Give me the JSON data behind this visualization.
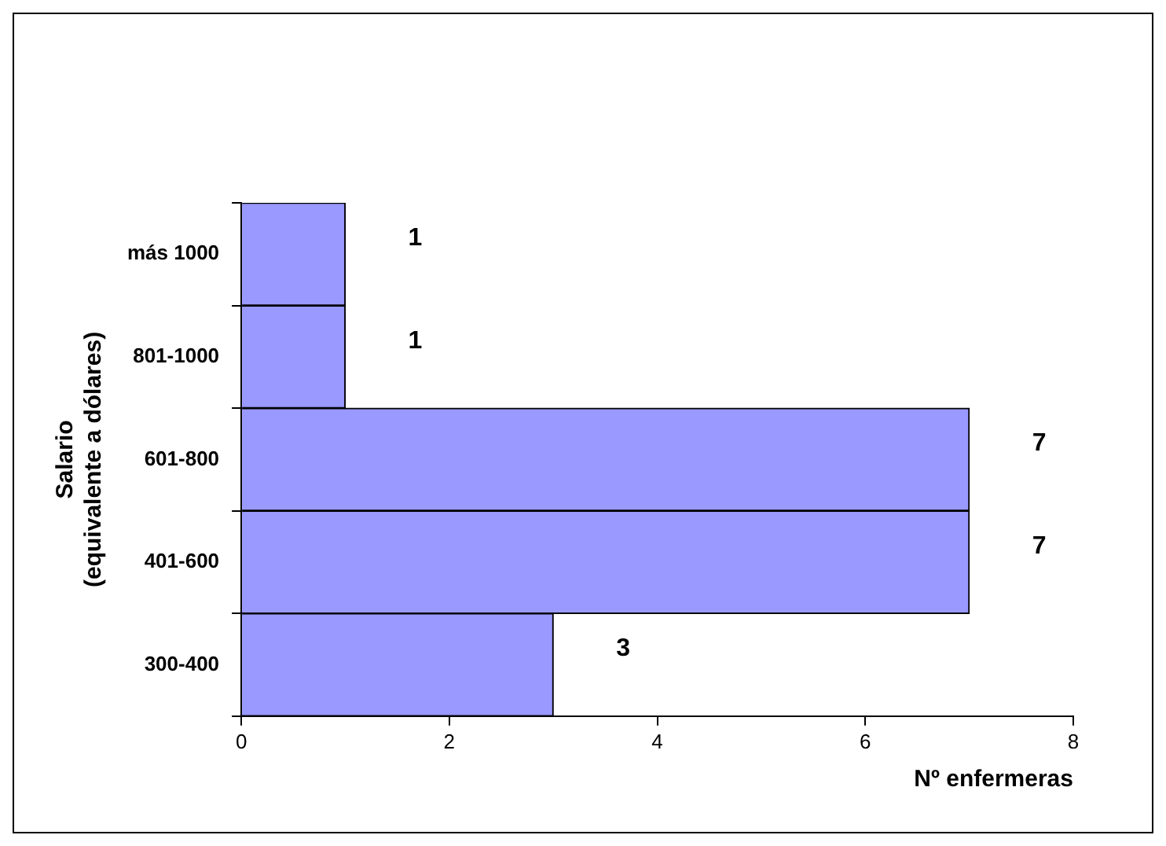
{
  "chart_data": {
    "type": "bar",
    "orientation": "horizontal",
    "categories": [
      "más 1000",
      "801-1000",
      "601-800",
      "401-600",
      "300-400"
    ],
    "values": [
      1,
      1,
      7,
      7,
      3
    ],
    "color": "#9999ff",
    "xlim": [
      0,
      8
    ],
    "xticks": [
      0,
      2,
      4,
      6,
      8
    ],
    "xlabel": "Nº enfermeras",
    "ylabel": "Salario\n(equivalente a dólares)",
    "data_labels": true,
    "grid": false,
    "legend": false
  }
}
